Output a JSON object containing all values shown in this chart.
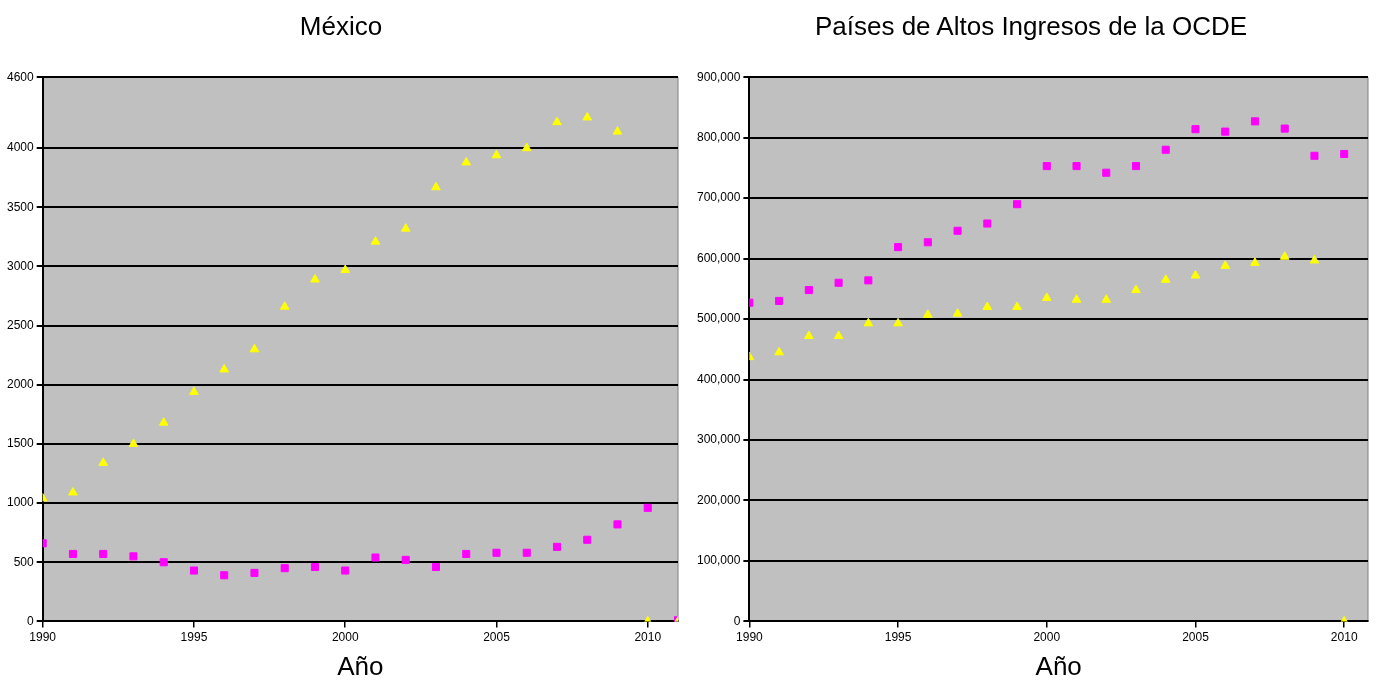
{
  "chart_data": [
    {
      "type": "scatter",
      "title": "México",
      "xlabel": "Año",
      "x": [
        1990,
        1991,
        1992,
        1993,
        1994,
        1995,
        1996,
        1997,
        1998,
        1999,
        2000,
        2001,
        2002,
        2003,
        2004,
        2005,
        2006,
        2007,
        2008,
        2009,
        2010,
        2011
      ],
      "series": [
        {
          "color": "#ffff00",
          "marker": "triangle",
          "values": [
            1040,
            1090,
            1340,
            1500,
            1680,
            1940,
            2130,
            2300,
            2660,
            2890,
            2970,
            3210,
            3320,
            3670,
            3880,
            3940,
            4000,
            4220,
            4260,
            4140,
            0,
            0
          ]
        },
        {
          "color": "#ff00ff",
          "marker": "square",
          "values": [
            660,
            570,
            570,
            550,
            500,
            430,
            390,
            410,
            450,
            460,
            430,
            540,
            520,
            460,
            570,
            580,
            580,
            630,
            690,
            820,
            960,
            10
          ]
        }
      ],
      "xlim": [
        1990,
        2011
      ],
      "ylim": [
        0,
        4600
      ],
      "xticks": [
        1990,
        1995,
        2000,
        2005,
        2010
      ],
      "yticks": [
        0,
        500,
        1000,
        1500,
        2000,
        2500,
        3000,
        3500,
        4000,
        4600
      ],
      "grid": "y"
    },
    {
      "type": "scatter",
      "title": "Países de Altos Ingresos de la OCDE",
      "xlabel": "Año",
      "x": [
        1990,
        1991,
        1992,
        1993,
        1994,
        1995,
        1996,
        1997,
        1998,
        1999,
        2000,
        2001,
        2002,
        2003,
        2004,
        2005,
        2006,
        2007,
        2008,
        2009,
        2010
      ],
      "series": [
        {
          "color": "#ffff00",
          "marker": "triangle",
          "values": [
            437000,
            445000,
            472000,
            472000,
            493000,
            493000,
            507000,
            509000,
            520000,
            520000,
            535000,
            532000,
            532000,
            548000,
            565000,
            572000,
            588000,
            593000,
            603000,
            597000,
            0
          ]
        },
        {
          "color": "#ff00ff",
          "marker": "square",
          "values": [
            527000,
            530000,
            548000,
            560000,
            564000,
            619000,
            627000,
            646000,
            658000,
            690000,
            753000,
            753000,
            742000,
            753000,
            780000,
            814000,
            810000,
            827000,
            815000,
            770000,
            773000
          ]
        }
      ],
      "xlim": [
        1990,
        2010.8
      ],
      "ylim": [
        0,
        900000
      ],
      "xticks": [
        1990,
        1995,
        2000,
        2005,
        2010
      ],
      "yticks": [
        0,
        {
          "value": 100000,
          "label": "100,000"
        },
        {
          "value": 200000,
          "label": "200,000"
        },
        {
          "value": 300000,
          "label": "300,000"
        },
        {
          "value": 400000,
          "label": "400,000"
        },
        {
          "value": 500000,
          "label": "500,000"
        },
        {
          "value": 600000,
          "label": "600,000"
        },
        {
          "value": 700000,
          "label": "700,000"
        },
        {
          "value": 800000,
          "label": "800,000"
        },
        {
          "value": 900000,
          "label": "900,000"
        }
      ],
      "grid": "y"
    }
  ]
}
